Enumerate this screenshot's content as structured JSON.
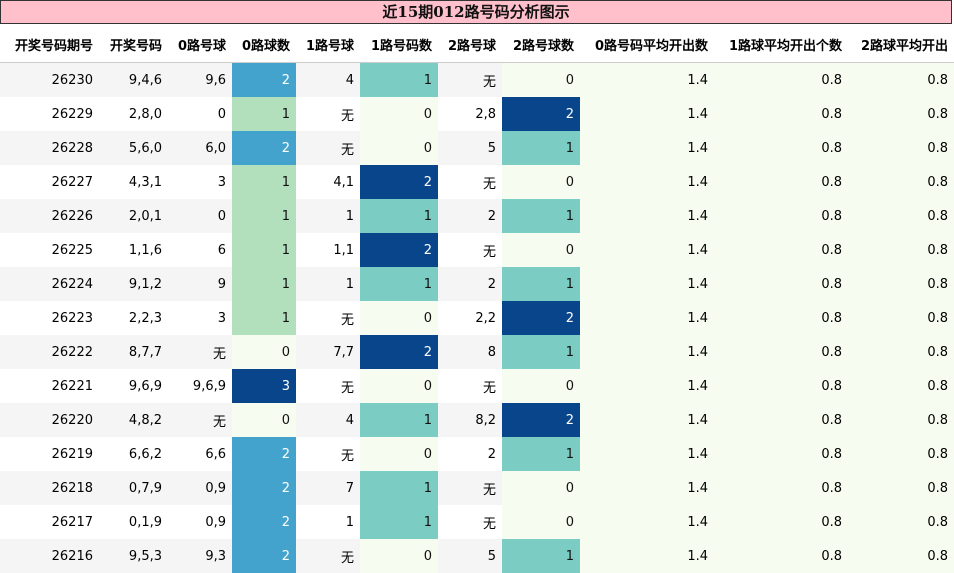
{
  "title": "近15期012路号码分析图示",
  "chart_data": {
    "type": "table",
    "columns": [
      "开奖号码期号",
      "开奖号码",
      "0路号球",
      "0路球数",
      "1路号球",
      "1路号码数",
      "2路号球",
      "2路号球数",
      "0路号码平均开出数",
      "1路球平均开出个数",
      "2路球平均开出"
    ],
    "rows": [
      [
        "26230",
        "9,4,6",
        "9,6",
        "2",
        "4",
        "1",
        "无",
        "0",
        "1.4",
        "0.8",
        "0.8"
      ],
      [
        "26229",
        "2,8,0",
        "0",
        "1",
        "无",
        "0",
        "2,8",
        "2",
        "1.4",
        "0.8",
        "0.8"
      ],
      [
        "26228",
        "5,6,0",
        "6,0",
        "2",
        "无",
        "0",
        "5",
        "1",
        "1.4",
        "0.8",
        "0.8"
      ],
      [
        "26227",
        "4,3,1",
        "3",
        "1",
        "4,1",
        "2",
        "无",
        "0",
        "1.4",
        "0.8",
        "0.8"
      ],
      [
        "26226",
        "2,0,1",
        "0",
        "1",
        "1",
        "1",
        "2",
        "1",
        "1.4",
        "0.8",
        "0.8"
      ],
      [
        "26225",
        "1,1,6",
        "6",
        "1",
        "1,1",
        "2",
        "无",
        "0",
        "1.4",
        "0.8",
        "0.8"
      ],
      [
        "26224",
        "9,1,2",
        "9",
        "1",
        "1",
        "1",
        "2",
        "1",
        "1.4",
        "0.8",
        "0.8"
      ],
      [
        "26223",
        "2,2,3",
        "3",
        "1",
        "无",
        "0",
        "2,2",
        "2",
        "1.4",
        "0.8",
        "0.8"
      ],
      [
        "26222",
        "8,7,7",
        "无",
        "0",
        "7,7",
        "2",
        "8",
        "1",
        "1.4",
        "0.8",
        "0.8"
      ],
      [
        "26221",
        "9,6,9",
        "9,6,9",
        "3",
        "无",
        "0",
        "无",
        "0",
        "1.4",
        "0.8",
        "0.8"
      ],
      [
        "26220",
        "4,8,2",
        "无",
        "0",
        "4",
        "1",
        "8,2",
        "2",
        "1.4",
        "0.8",
        "0.8"
      ],
      [
        "26219",
        "6,6,2",
        "6,6",
        "2",
        "无",
        "0",
        "2",
        "1",
        "1.4",
        "0.8",
        "0.8"
      ],
      [
        "26218",
        "0,7,9",
        "0,9",
        "2",
        "7",
        "1",
        "无",
        "0",
        "1.4",
        "0.8",
        "0.8"
      ],
      [
        "26217",
        "0,1,9",
        "0,9",
        "2",
        "1",
        "1",
        "无",
        "0",
        "1.4",
        "0.8",
        "0.8"
      ],
      [
        "26216",
        "9,5,3",
        "9,3",
        "2",
        "无",
        "0",
        "5",
        "1",
        "1.4",
        "0.8",
        "0.8"
      ]
    ],
    "heat_columns": [
      3,
      5,
      7
    ],
    "heat_colors": {
      "zero": "#f7fcf0",
      "one_in_count0": "#b3e0bc",
      "one": "#7bcdc4",
      "two_in_count0": "#43a3cd",
      "two": "#08458a",
      "three": "#08458a"
    }
  }
}
